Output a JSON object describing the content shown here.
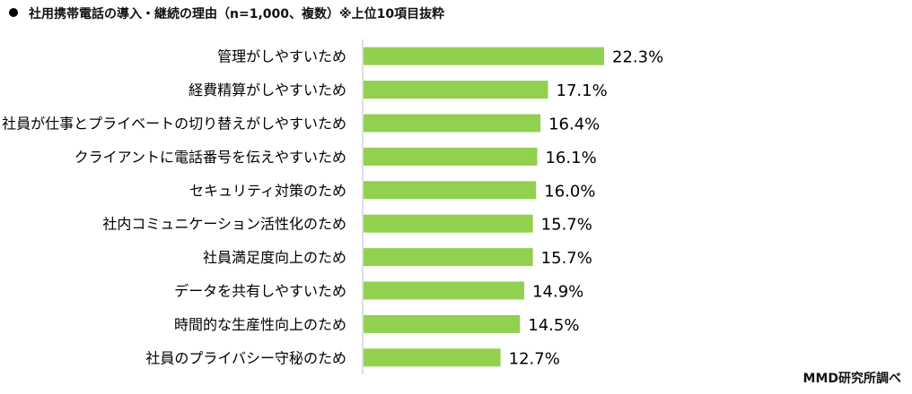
{
  "title": "社用携帯電話の導入・継続の理由（n=1,000、複数）※上位10項目抜粋",
  "source": "MMD研究所調べ",
  "chart_data": {
    "type": "bar",
    "orientation": "horizontal",
    "title": "社用携帯電話の導入・継続の理由（n=1,000、複数）※上位10項目抜粋",
    "xlabel": "",
    "ylabel": "",
    "xlim": [
      0,
      22.3
    ],
    "grid": false,
    "legend": "none",
    "bar_color": "#92d050",
    "value_suffix": "%",
    "categories": [
      "管理がしやすいため",
      "経費精算がしやすいため",
      "社員が仕事とプライベートの切り替えがしやすいため",
      "クライアントに電話番号を伝えやすいため",
      "セキュリティ対策のため",
      "社内コミュニケーション活性化のため",
      "社員満足度向上のため",
      "データを共有しやすいため",
      "時間的な生産性向上のため",
      "社員のプライバシー守秘のため"
    ],
    "values": [
      22.3,
      17.1,
      16.4,
      16.1,
      16.0,
      15.7,
      15.7,
      14.9,
      14.5,
      12.7
    ]
  }
}
